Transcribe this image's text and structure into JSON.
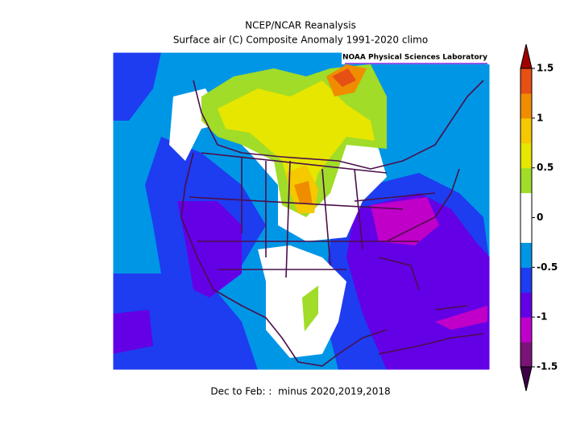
{
  "title": "NCEP/NCAR Reanalysis",
  "subtitle": "Surface air (C) Composite Anomaly 1991-2020 climo",
  "credit": "NOAA Physical Sciences Laboratory",
  "footer": "Dec to Feb: :  minus 2020,2019,2018",
  "colorbar": {
    "lim": [
      -1.5,
      1.5
    ],
    "ticks": [
      1.5,
      1,
      0.5,
      0,
      -0.5,
      -1,
      -1.5
    ],
    "colors": [
      "#7a1478",
      "#c000c8",
      "#6400e6",
      "#1e3cf0",
      "#0096e6",
      "#ffffff",
      "#ffffff",
      "#a0dc28",
      "#e6e600",
      "#f5c800",
      "#f08c00",
      "#e65014"
    ],
    "extend_low": "#3c0046",
    "extend_high": "#a00000"
  }
}
